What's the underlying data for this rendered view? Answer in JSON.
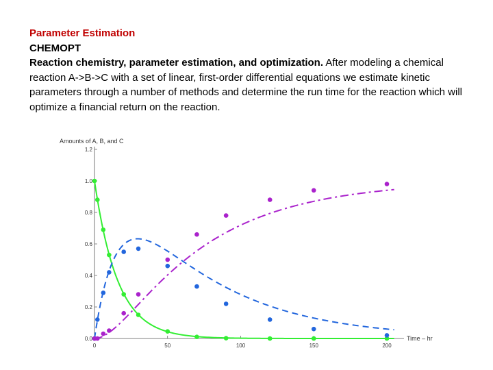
{
  "text": {
    "heading": "Parameter Estimation",
    "subheading": "CHEMOPT",
    "lead_bold": "Reaction chemistry, parameter estimation, and optimization.",
    "body": " After modeling a chemical reaction A->B->C with a set of linear, first-order differential equations we estimate kinetic parameters through a number of methods and determine the run time for the reaction which will optimize a financial return on the reaction."
  },
  "chart_data": {
    "type": "line",
    "title": "",
    "ylabel": "Amounts of A, B, and C",
    "xlabel": "Time – hr",
    "xlim": [
      0,
      200
    ],
    "ylim": [
      0,
      1.2
    ],
    "x_ticks": [
      0,
      50,
      100,
      150,
      200
    ],
    "y_ticks": [
      0.0,
      0.2,
      0.4,
      0.6,
      0.8,
      1.0,
      1.2
    ],
    "grid": false,
    "legend": "none",
    "series": [
      {
        "color": "#33ee33",
        "line_style": "solid",
        "points_x": [
          0,
          2,
          6,
          10,
          20,
          30,
          50,
          70,
          90,
          120,
          150,
          200
        ],
        "points_y": [
          1.0,
          0.88,
          0.69,
          0.53,
          0.28,
          0.15,
          0.045,
          0.01,
          0.002,
          0.0,
          0.0,
          0.0
        ]
      },
      {
        "color": "#2266dd",
        "line_style": "dashed",
        "points_x": [
          0,
          2,
          6,
          10,
          20,
          30,
          50,
          70,
          90,
          120,
          150,
          200
        ],
        "points_y": [
          0.0,
          0.12,
          0.29,
          0.42,
          0.55,
          0.57,
          0.46,
          0.33,
          0.22,
          0.12,
          0.06,
          0.02
        ]
      },
      {
        "color": "#aa22cc",
        "line_style": "dashdot",
        "points_x": [
          0,
          2,
          6,
          10,
          20,
          30,
          50,
          70,
          90,
          120,
          150,
          200
        ],
        "points_y": [
          0.0,
          0.0,
          0.03,
          0.05,
          0.16,
          0.28,
          0.5,
          0.66,
          0.78,
          0.88,
          0.94,
          0.98
        ]
      }
    ]
  }
}
